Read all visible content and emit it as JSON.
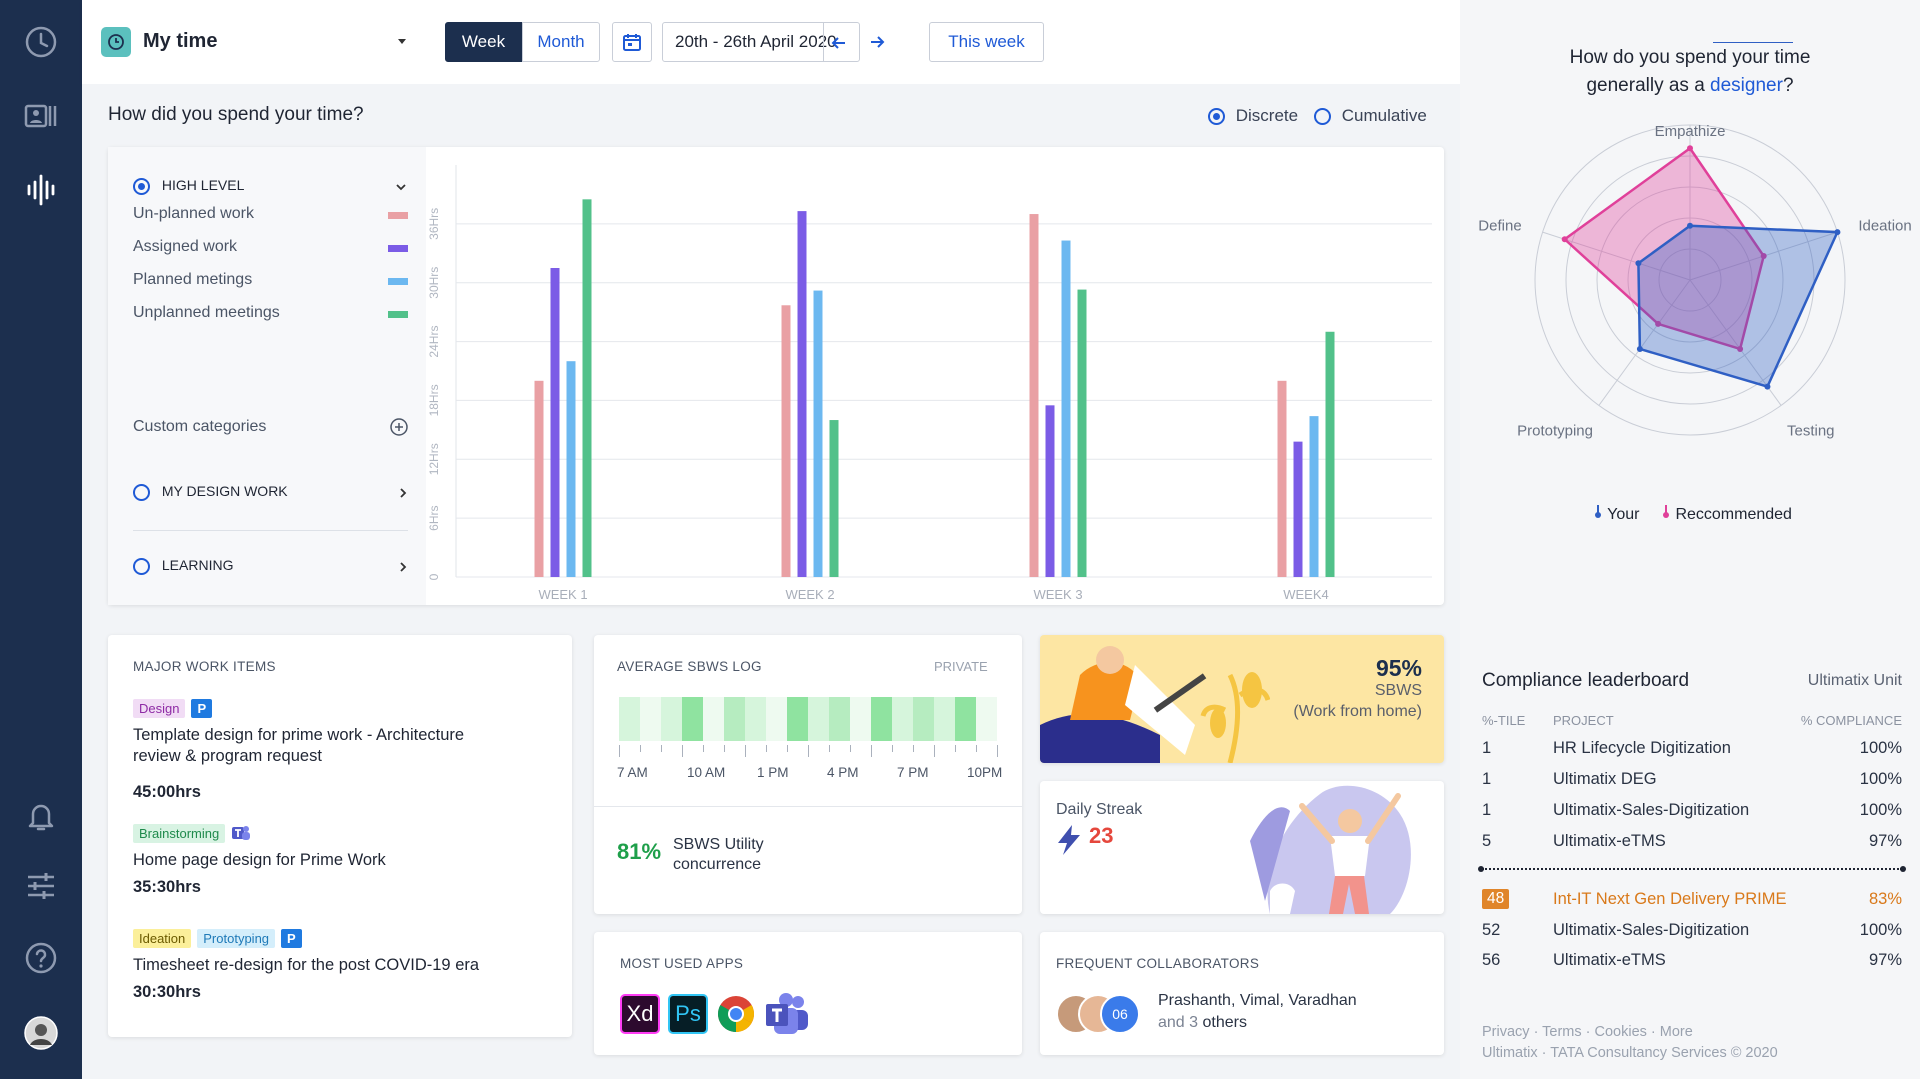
{
  "topbar": {
    "title": "My time",
    "view_week": "Week",
    "view_month": "Month",
    "date_range": "20th - 26th April 2020",
    "this_week": "This week"
  },
  "chart_section": {
    "question": "How did you spend your time?",
    "mode_discrete": "Discrete",
    "mode_cumulative": "Cumulative"
  },
  "filters": {
    "high_level": "HIGH LEVEL",
    "items": [
      {
        "label": "Un-planned work",
        "color": "#e9a0a4"
      },
      {
        "label": "Assigned work",
        "color": "#7b5ce6"
      },
      {
        "label": "Planned metings",
        "color": "#6cb8f0"
      },
      {
        "label": "Unplanned meetings",
        "color": "#52c18a"
      }
    ],
    "custom_categories": "Custom categories",
    "my_design_work": "MY DESIGN WORK",
    "learning": "LEARNING"
  },
  "chart_data": {
    "type": "bar",
    "categories": [
      "WEEK 1",
      "WEEK 2",
      "WEEK 3",
      "WEEK4"
    ],
    "y_ticks": [
      "0",
      "6Hrs",
      "12Hrs",
      "18Hrs",
      "24Hrs",
      "30Hrs",
      "36Hrs"
    ],
    "ylim": [
      0,
      42
    ],
    "grid": true,
    "series": [
      {
        "color": "#e9a0a4",
        "values": [
          20,
          27.7,
          37,
          20
        ]
      },
      {
        "color": "#7b5ce6",
        "values": [
          31.5,
          37.3,
          17.5,
          13.8
        ]
      },
      {
        "color": "#6cb8f0",
        "values": [
          22,
          29.2,
          34.3,
          16.4
        ]
      },
      {
        "color": "#52c18a",
        "values": [
          38.5,
          16,
          29.3,
          25
        ]
      }
    ]
  },
  "work_items": {
    "title": "MAJOR WORK ITEMS",
    "items": [
      {
        "tags": [
          "Design"
        ],
        "badge": "P",
        "title": "Template design for prime work - Architecture review & program request",
        "hours": "45:00hrs"
      },
      {
        "tags": [
          "Brainstorming"
        ],
        "badge": "teams",
        "title": "Home page design for Prime Work",
        "hours": "35:30hrs"
      },
      {
        "tags": [
          "Ideation",
          "Prototyping"
        ],
        "badge": "P",
        "title": "Timesheet re-design for the post COVID-19 era",
        "hours": "30:30hrs"
      }
    ]
  },
  "sbws_log": {
    "title": "AVERAGE SBWS LOG",
    "private": "PRIVATE",
    "times": [
      "7 AM",
      "10 AM",
      "1 PM",
      "4 PM",
      "7 PM",
      "10PM"
    ],
    "segments": [
      1,
      0,
      1,
      3,
      0,
      2,
      1,
      0,
      3,
      1,
      2,
      0,
      3,
      1,
      2,
      1,
      3,
      0
    ],
    "utility_value": "81%",
    "utility_label_1": "SBWS Utility",
    "utility_label_2": "concurrence"
  },
  "wfh": {
    "percent": "95%",
    "label": "SBWS",
    "sub": "(Work from home)"
  },
  "streak": {
    "label": "Daily Streak",
    "value": "23"
  },
  "apps": {
    "title": "MOST USED APPS",
    "list": [
      "Xd",
      "Ps",
      "chrome",
      "teams"
    ]
  },
  "collab": {
    "title": "FREQUENT COLLABORATORS",
    "count": "06",
    "names": "Prashanth, Vimal, Varadhan",
    "others_prefix": "and",
    "others_count": "3",
    "others_suffix": "others"
  },
  "radar": {
    "question_1": "How do you spend your time",
    "question_2": "generally as a",
    "role": "designer",
    "question_end": "?",
    "axes": [
      "Empathize",
      "Ideation",
      "Testing",
      "Prototyping",
      "Define"
    ],
    "your": [
      0.35,
      1.0,
      0.85,
      0.55,
      0.35
    ],
    "recommended": [
      0.85,
      0.5,
      0.55,
      0.35,
      0.85
    ],
    "legend_your": "Your",
    "legend_recommended": "Reccommended",
    "your_color": "#2f5fc4",
    "recommended_color": "#e0409a"
  },
  "leaderboard": {
    "title": "Compliance leaderboard",
    "unit": "Ultimatix Unit",
    "col_tile": "%-TILE",
    "col_project": "PROJECT",
    "col_compliance": "% COMPLIANCE",
    "rows": [
      {
        "tile": "1",
        "project": "HR Lifecycle Digitization",
        "pct": "100%"
      },
      {
        "tile": "1",
        "project": "Ultimatix DEG",
        "pct": "100%"
      },
      {
        "tile": "1",
        "project": "Ultimatix-Sales-Digitization",
        "pct": "100%"
      },
      {
        "tile": "5",
        "project": "Ultimatix-eTMS",
        "pct": "97%"
      }
    ],
    "highlight": {
      "tile": "48",
      "project": "Int-IT Next Gen Delivery PRIME",
      "pct": "83%"
    },
    "rows_after": [
      {
        "tile": "52",
        "project": "Ultimatix-Sales-Digitization",
        "pct": "100%"
      },
      {
        "tile": "56",
        "project": "Ultimatix-eTMS",
        "pct": "97%"
      }
    ]
  },
  "footer": {
    "links": "Privacy · Terms · Cookies · More",
    "copyright": "Ultimatix · TATA Consultancy Services © 2020"
  }
}
